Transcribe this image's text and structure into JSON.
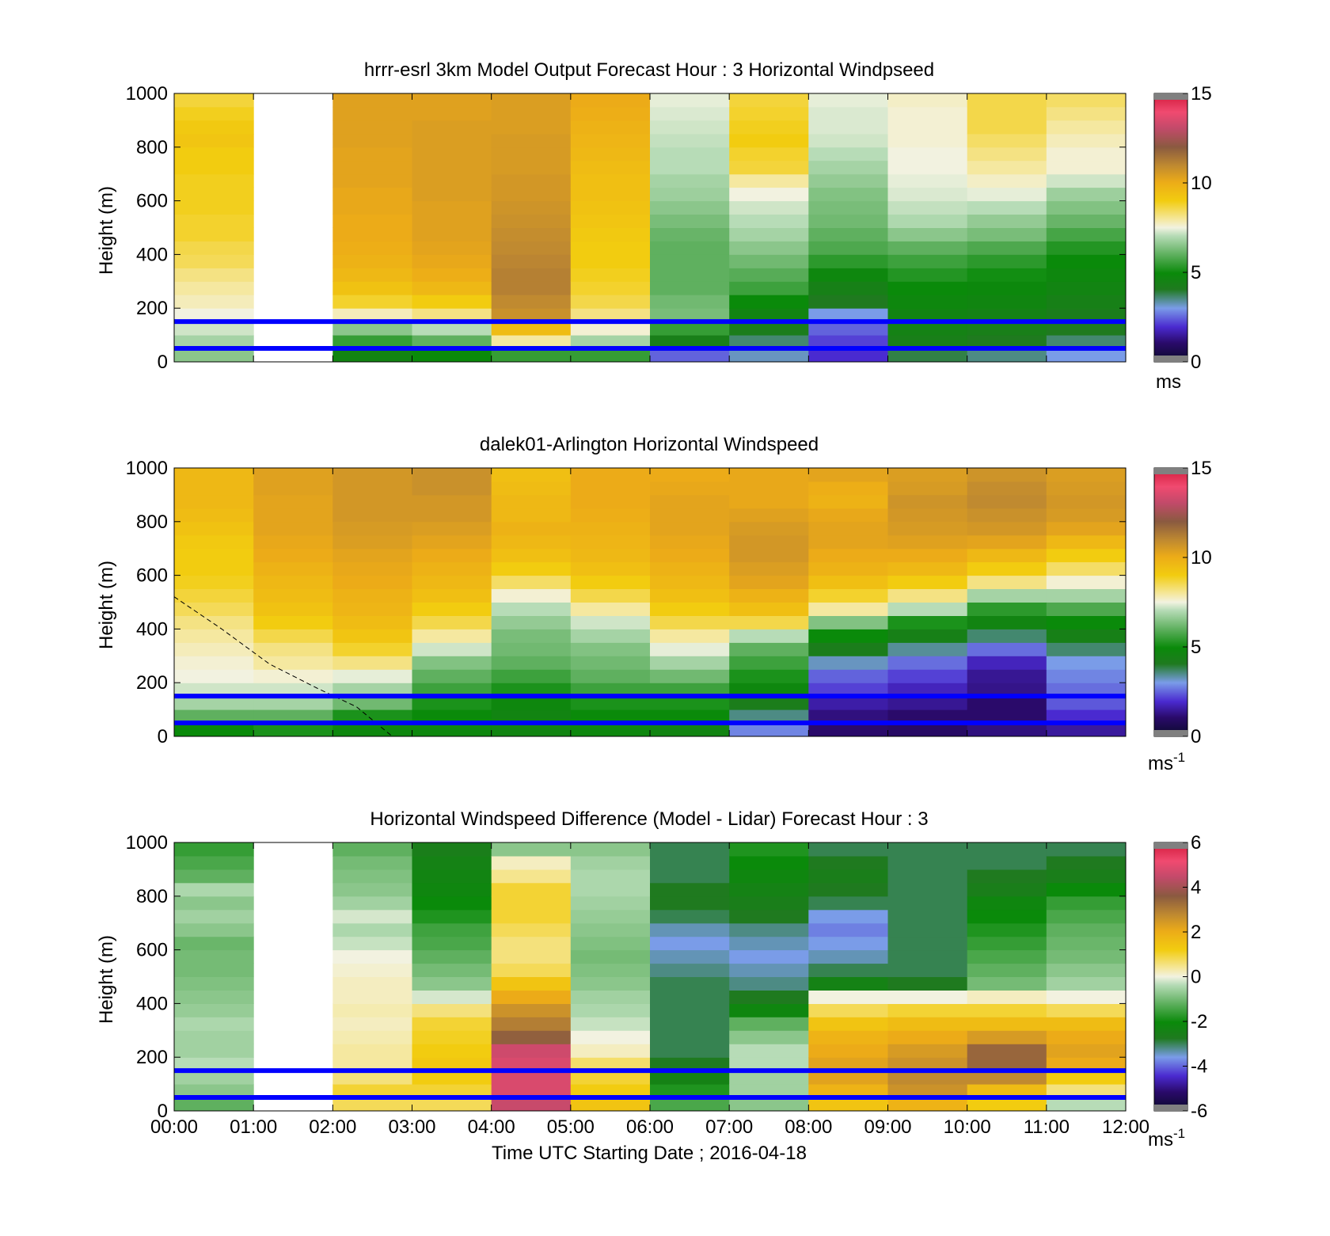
{
  "figure": {
    "xlabel": "Time UTC  Starting Date ; 2016-04-18",
    "x_tick_labels": [
      "00:00",
      "01:00",
      "02:00",
      "03:00",
      "04:00",
      "05:00",
      "06:00",
      "07:00",
      "08:00",
      "09:00",
      "10:00",
      "11:00",
      "12:00"
    ]
  },
  "chart_data": [
    {
      "type": "heatmap",
      "title": "hrrr-esrl 3km Model Output   Forecast Hour : 3 Horizontal Windpseed",
      "ylabel": "Height (m)",
      "xlim": [
        0,
        12
      ],
      "ylim": [
        0,
        1000
      ],
      "y_ticks": [
        0,
        200,
        400,
        600,
        800,
        1000
      ],
      "colorbar": {
        "ticks": [
          0,
          5,
          10,
          15
        ],
        "range": [
          0,
          15
        ],
        "label": "ms",
        "scale": "wind"
      },
      "reference_lines_m": [
        50,
        150
      ],
      "grid": false,
      "x_centers_hours": [
        0.5,
        1.5,
        2.5,
        3.5,
        4.5,
        5.5,
        6.5,
        7.5,
        8.5,
        9.5,
        10.5,
        11.5
      ],
      "y_levels_m": [
        25,
        75,
        125,
        175,
        225,
        275,
        325,
        375,
        425,
        475,
        525,
        575,
        625,
        675,
        725,
        775,
        825,
        875,
        925,
        975
      ],
      "missing_columns": [
        1
      ],
      "column_profiles_ms": [
        [
          6.5,
          6.8,
          7.2,
          7.5,
          7.8,
          8.0,
          8.2,
          8.5,
          8.6,
          8.8,
          8.8,
          8.9,
          8.9,
          8.9,
          9.0,
          9.0,
          9.2,
          9.1,
          8.9,
          8.7
        ],
        null,
        [
          4.6,
          5.5,
          6.5,
          7.8,
          8.8,
          9.3,
          9.6,
          9.8,
          9.9,
          10.0,
          10.0,
          10.1,
          10.1,
          10.2,
          10.2,
          10.2,
          10.3,
          10.3,
          10.3,
          10.3
        ],
        [
          5.0,
          6.0,
          7.0,
          8.2,
          9.0,
          9.6,
          9.9,
          10.1,
          10.2,
          10.3,
          10.3,
          10.3,
          10.4,
          10.4,
          10.4,
          10.4,
          10.4,
          10.4,
          10.3,
          10.3
        ],
        [
          5.5,
          8.0,
          9.5,
          10.8,
          11.0,
          11.2,
          11.2,
          11.1,
          11.0,
          10.9,
          10.8,
          10.7,
          10.6,
          10.6,
          10.5,
          10.5,
          10.5,
          10.4,
          10.4,
          10.4
        ],
        [
          5.5,
          6.8,
          7.6,
          8.2,
          8.6,
          8.8,
          8.9,
          9.0,
          9.0,
          9.1,
          9.2,
          9.3,
          9.4,
          9.4,
          9.5,
          9.6,
          9.7,
          9.8,
          9.9,
          10.0
        ],
        [
          2.5,
          4.3,
          5.5,
          6.3,
          6.2,
          6.0,
          6.0,
          6.0,
          6.0,
          6.1,
          6.3,
          6.5,
          6.7,
          6.8,
          7.0,
          7.0,
          7.1,
          7.2,
          7.3,
          7.4
        ],
        [
          3.2,
          3.6,
          4.2,
          4.6,
          5.0,
          5.6,
          5.9,
          6.2,
          6.5,
          6.8,
          7.0,
          7.2,
          7.5,
          8.0,
          8.7,
          8.8,
          9.0,
          8.9,
          8.8,
          8.7
        ],
        [
          2.0,
          2.2,
          2.5,
          3.0,
          4.0,
          4.4,
          4.8,
          5.4,
          5.8,
          6.0,
          6.2,
          6.3,
          6.4,
          6.6,
          6.8,
          7.0,
          7.2,
          7.3,
          7.3,
          7.4
        ],
        [
          3.8,
          4.3,
          4.5,
          4.6,
          4.8,
          5.0,
          5.3,
          5.6,
          6.0,
          6.5,
          6.9,
          7.1,
          7.3,
          7.4,
          7.5,
          7.5,
          7.6,
          7.6,
          7.6,
          7.7
        ],
        [
          3.5,
          4.0,
          4.3,
          4.5,
          4.7,
          4.9,
          5.1,
          5.4,
          5.8,
          6.3,
          6.6,
          7.0,
          7.4,
          7.7,
          8.0,
          8.2,
          8.4,
          8.6,
          8.6,
          8.6
        ],
        [
          3.0,
          3.6,
          4.0,
          4.2,
          4.4,
          4.6,
          4.8,
          5.0,
          5.3,
          5.7,
          6.1,
          6.4,
          6.7,
          7.2,
          7.6,
          7.6,
          7.8,
          8.0,
          8.2,
          8.4
        ]
      ]
    },
    {
      "type": "heatmap",
      "title": "dalek01-Arlington  Horizontal Windspeed",
      "ylabel": "Height (m)",
      "xlim": [
        0,
        12
      ],
      "ylim": [
        0,
        1000
      ],
      "y_ticks": [
        0,
        200,
        400,
        600,
        800,
        1000
      ],
      "colorbar": {
        "ticks": [
          0,
          5,
          10,
          15
        ],
        "range": [
          0,
          15
        ],
        "label": "ms-1",
        "scale": "wind"
      },
      "reference_lines_m": [
        50,
        150
      ],
      "grid": false,
      "x_centers_hours": [
        0.5,
        1.5,
        2.5,
        3.5,
        4.5,
        5.5,
        6.5,
        7.5,
        8.5,
        9.5,
        10.5,
        11.5
      ],
      "y_levels_m": [
        25,
        75,
        125,
        175,
        225,
        275,
        325,
        375,
        425,
        475,
        525,
        575,
        625,
        675,
        725,
        775,
        825,
        875,
        925,
        975
      ],
      "annotation_line": {
        "style": "dashed",
        "x_hours": [
          0.0,
          0.6,
          1.2,
          1.8,
          2.3,
          2.75
        ],
        "y_m": [
          520,
          400,
          270,
          180,
          110,
          0
        ]
      },
      "column_profiles_ms": [
        [
          5.0,
          6.0,
          6.8,
          7.2,
          7.5,
          7.6,
          7.8,
          8.0,
          8.2,
          8.5,
          8.7,
          8.9,
          9.0,
          9.0,
          9.1,
          9.3,
          9.5,
          9.6,
          9.6,
          9.6
        ],
        [
          5.2,
          6.0,
          6.8,
          7.2,
          7.6,
          8.0,
          8.2,
          8.6,
          9.0,
          9.3,
          9.5,
          9.6,
          9.8,
          10.0,
          10.1,
          10.2,
          10.2,
          10.2,
          10.3,
          10.3
        ],
        [
          4.8,
          5.2,
          6.2,
          6.8,
          7.4,
          8.2,
          8.8,
          9.2,
          9.5,
          9.7,
          9.8,
          10.0,
          10.1,
          10.2,
          10.4,
          10.5,
          10.6,
          10.6,
          10.6,
          10.6
        ],
        [
          4.8,
          5.0,
          5.2,
          5.6,
          6.0,
          6.4,
          7.2,
          8.0,
          8.6,
          9.0,
          9.4,
          9.6,
          9.8,
          10.0,
          10.2,
          10.4,
          10.6,
          10.6,
          10.8,
          10.8
        ],
        [
          4.6,
          4.6,
          4.8,
          5.2,
          5.6,
          6.0,
          6.2,
          6.3,
          6.6,
          7.0,
          7.6,
          8.4,
          9.0,
          9.4,
          9.6,
          9.8,
          9.6,
          9.6,
          9.5,
          9.4
        ],
        [
          4.8,
          5.0,
          5.2,
          5.6,
          6.0,
          6.2,
          6.4,
          6.8,
          7.2,
          8.0,
          8.6,
          9.0,
          9.4,
          9.6,
          9.7,
          9.8,
          9.9,
          10.0,
          10.0,
          10.0
        ],
        [
          4.6,
          5.0,
          5.2,
          5.6,
          6.2,
          6.8,
          7.4,
          8.0,
          8.6,
          9.0,
          9.4,
          9.6,
          9.8,
          10.0,
          10.1,
          10.2,
          10.2,
          10.2,
          10.1,
          10.0
        ],
        [
          2.8,
          3.5,
          4.2,
          4.8,
          5.2,
          5.6,
          6.0,
          7.0,
          8.6,
          9.4,
          9.8,
          10.2,
          10.4,
          10.6,
          10.6,
          10.5,
          10.3,
          10.1,
          10.1,
          10.1
        ],
        [
          1.0,
          1.2,
          1.6,
          2.2,
          2.5,
          3.2,
          4.2,
          5.0,
          6.4,
          8.0,
          8.8,
          9.4,
          9.8,
          10.0,
          10.2,
          10.2,
          10.1,
          9.8,
          9.9,
          10.2
        ],
        [
          0.9,
          1.0,
          1.4,
          1.8,
          2.2,
          2.6,
          3.4,
          4.4,
          5.2,
          7.0,
          8.2,
          9.0,
          9.6,
          10.0,
          10.3,
          10.5,
          10.6,
          10.7,
          10.5,
          10.4
        ],
        [
          1.2,
          1.0,
          1.0,
          1.3,
          1.4,
          1.8,
          2.6,
          3.6,
          4.6,
          5.4,
          6.8,
          8.2,
          9.0,
          9.6,
          10.2,
          10.6,
          10.8,
          11.0,
          10.9,
          10.7
        ],
        [
          1.5,
          2.0,
          2.4,
          2.6,
          2.8,
          3.0,
          3.6,
          4.4,
          5.0,
          5.8,
          6.8,
          7.6,
          8.4,
          9.0,
          9.6,
          10.2,
          10.5,
          10.6,
          10.5,
          10.4
        ]
      ]
    },
    {
      "type": "heatmap",
      "title": "Horizontal Windspeed Difference (Model - Lidar) Forecast Hour : 3",
      "xlabel": "Time UTC  Starting Date ; 2016-04-18",
      "ylabel": "Height (m)",
      "xlim": [
        0,
        12
      ],
      "ylim": [
        0,
        1000
      ],
      "y_ticks": [
        0,
        200,
        400,
        600,
        800,
        1000
      ],
      "colorbar": {
        "ticks": [
          -6,
          -4,
          -2,
          0,
          2,
          4,
          6
        ],
        "range": [
          -6,
          6
        ],
        "label": "ms-1",
        "scale": "difference"
      },
      "reference_lines_m": [
        50,
        150
      ],
      "grid": false,
      "x_centers_hours": [
        0.5,
        1.5,
        2.5,
        3.5,
        4.5,
        5.5,
        6.5,
        7.5,
        8.5,
        9.5,
        10.5,
        11.5
      ],
      "y_levels_m": [
        25,
        75,
        125,
        175,
        225,
        275,
        325,
        375,
        425,
        475,
        525,
        575,
        625,
        675,
        725,
        775,
        825,
        875,
        925,
        975
      ],
      "missing_columns": [
        1
      ],
      "column_profiles_ms": [
        [
          -1.2,
          -0.8,
          -0.6,
          -0.4,
          -0.6,
          -0.6,
          -0.5,
          -0.7,
          -0.8,
          -0.9,
          -1.0,
          -1.0,
          -1.1,
          -0.8,
          -0.6,
          -0.8,
          -0.5,
          -1.2,
          -1.4,
          -1.6
        ],
        null,
        [
          0.8,
          1.0,
          0.6,
          0.4,
          0.4,
          0.3,
          0.2,
          0.3,
          0.2,
          0.2,
          0.1,
          0.0,
          -0.3,
          -0.5,
          -0.2,
          -0.6,
          -0.8,
          -0.9,
          -1.0,
          -1.2
        ],
        [
          0.8,
          1.0,
          1.2,
          1.3,
          1.2,
          1.1,
          1.0,
          0.6,
          -0.2,
          -0.8,
          -1.0,
          -1.2,
          -1.4,
          -1.5,
          -1.8,
          -2.0,
          -2.2,
          -2.3,
          -2.4,
          -2.6
        ],
        [
          4.5,
          4.8,
          4.8,
          4.8,
          4.6,
          3.5,
          3.0,
          2.6,
          2.0,
          1.4,
          0.8,
          0.6,
          0.6,
          0.8,
          1.0,
          1.0,
          1.0,
          0.5,
          0.2,
          -0.8
        ],
        [
          1.4,
          1.2,
          1.0,
          0.7,
          0.2,
          0.0,
          -0.3,
          -0.5,
          -0.6,
          -0.8,
          -0.9,
          -1.0,
          -0.9,
          -0.8,
          -0.7,
          -0.6,
          -0.5,
          -0.5,
          -0.6,
          -0.8
        ],
        [
          -1.4,
          -1.8,
          -2.4,
          -2.8,
          -3.0,
          -3.0,
          -3.0,
          -3.0,
          -3.0,
          -3.0,
          -3.2,
          -3.4,
          -3.6,
          -3.4,
          -3.0,
          -2.8,
          -2.8,
          -3.0,
          -3.0,
          -3.0
        ],
        [
          -0.8,
          -0.6,
          -0.6,
          -0.4,
          -0.4,
          -0.8,
          -1.2,
          -2.2,
          -2.8,
          -3.2,
          -3.4,
          -3.6,
          -3.4,
          -3.2,
          -2.8,
          -2.6,
          -2.4,
          -2.2,
          -2.0,
          -1.8
        ],
        [
          1.4,
          1.8,
          2.2,
          2.2,
          2.0,
          1.8,
          1.4,
          0.8,
          0.0,
          -2.4,
          -3.0,
          -3.4,
          -3.6,
          -3.8,
          -3.6,
          -3.0,
          -2.8,
          -2.6,
          -2.8,
          -3.0
        ],
        [
          1.8,
          2.6,
          2.8,
          2.6,
          2.4,
          2.0,
          1.6,
          1.0,
          0.0,
          -2.8,
          -3.0,
          -3.0,
          -3.0,
          -3.0,
          -3.0,
          -3.0,
          -3.0,
          -3.0,
          -3.0,
          -3.0
        ],
        [
          1.2,
          1.6,
          2.8,
          3.4,
          3.4,
          2.4,
          1.6,
          1.0,
          0.2,
          -1.0,
          -1.2,
          -1.4,
          -1.6,
          -1.8,
          -2.0,
          -2.2,
          -2.6,
          -2.8,
          -3.0,
          -3.0
        ],
        [
          -0.4,
          0.6,
          1.2,
          2.0,
          2.2,
          2.0,
          1.6,
          0.8,
          0.0,
          -0.6,
          -0.8,
          -1.0,
          -1.1,
          -1.2,
          -1.4,
          -1.6,
          -2.0,
          -2.6,
          -2.8,
          -3.0
        ]
      ]
    }
  ]
}
